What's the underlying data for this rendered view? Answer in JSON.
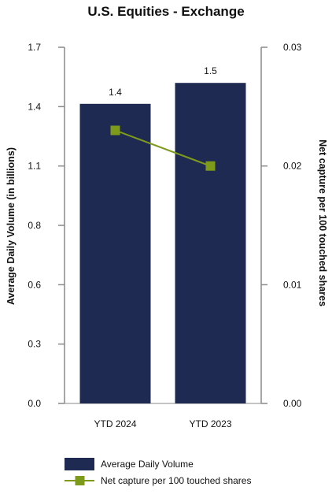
{
  "chart_data": {
    "type": "bar",
    "title": "U.S. Equities - Exchange",
    "categories": [
      "YTD 2024",
      "YTD 2023"
    ],
    "series": [
      {
        "name": "Average Daily Volume",
        "type": "bar",
        "axis": "left",
        "values": [
          1.43,
          1.53
        ],
        "data_labels": [
          "1.4",
          "1.5"
        ],
        "color": "#1f2a52"
      },
      {
        "name": "Net capture per 100 touched shares",
        "type": "line",
        "axis": "right",
        "values": [
          0.023,
          0.02
        ],
        "color": "#7d9a1b"
      }
    ],
    "ylabel": "Average Daily Volume (in billions)",
    "ylim": [
      0,
      1.7
    ],
    "yticks": [
      "0.0",
      "0.3",
      "0.6",
      "0.8",
      "1.1",
      "1.4",
      "1.7"
    ],
    "y2label": "Net capture per 100 touched shares",
    "y2lim": [
      0,
      0.03
    ],
    "y2ticks": [
      "0.00",
      "0.01",
      "0.02",
      "0.03"
    ],
    "grid": false,
    "legend": "bottom-left"
  }
}
